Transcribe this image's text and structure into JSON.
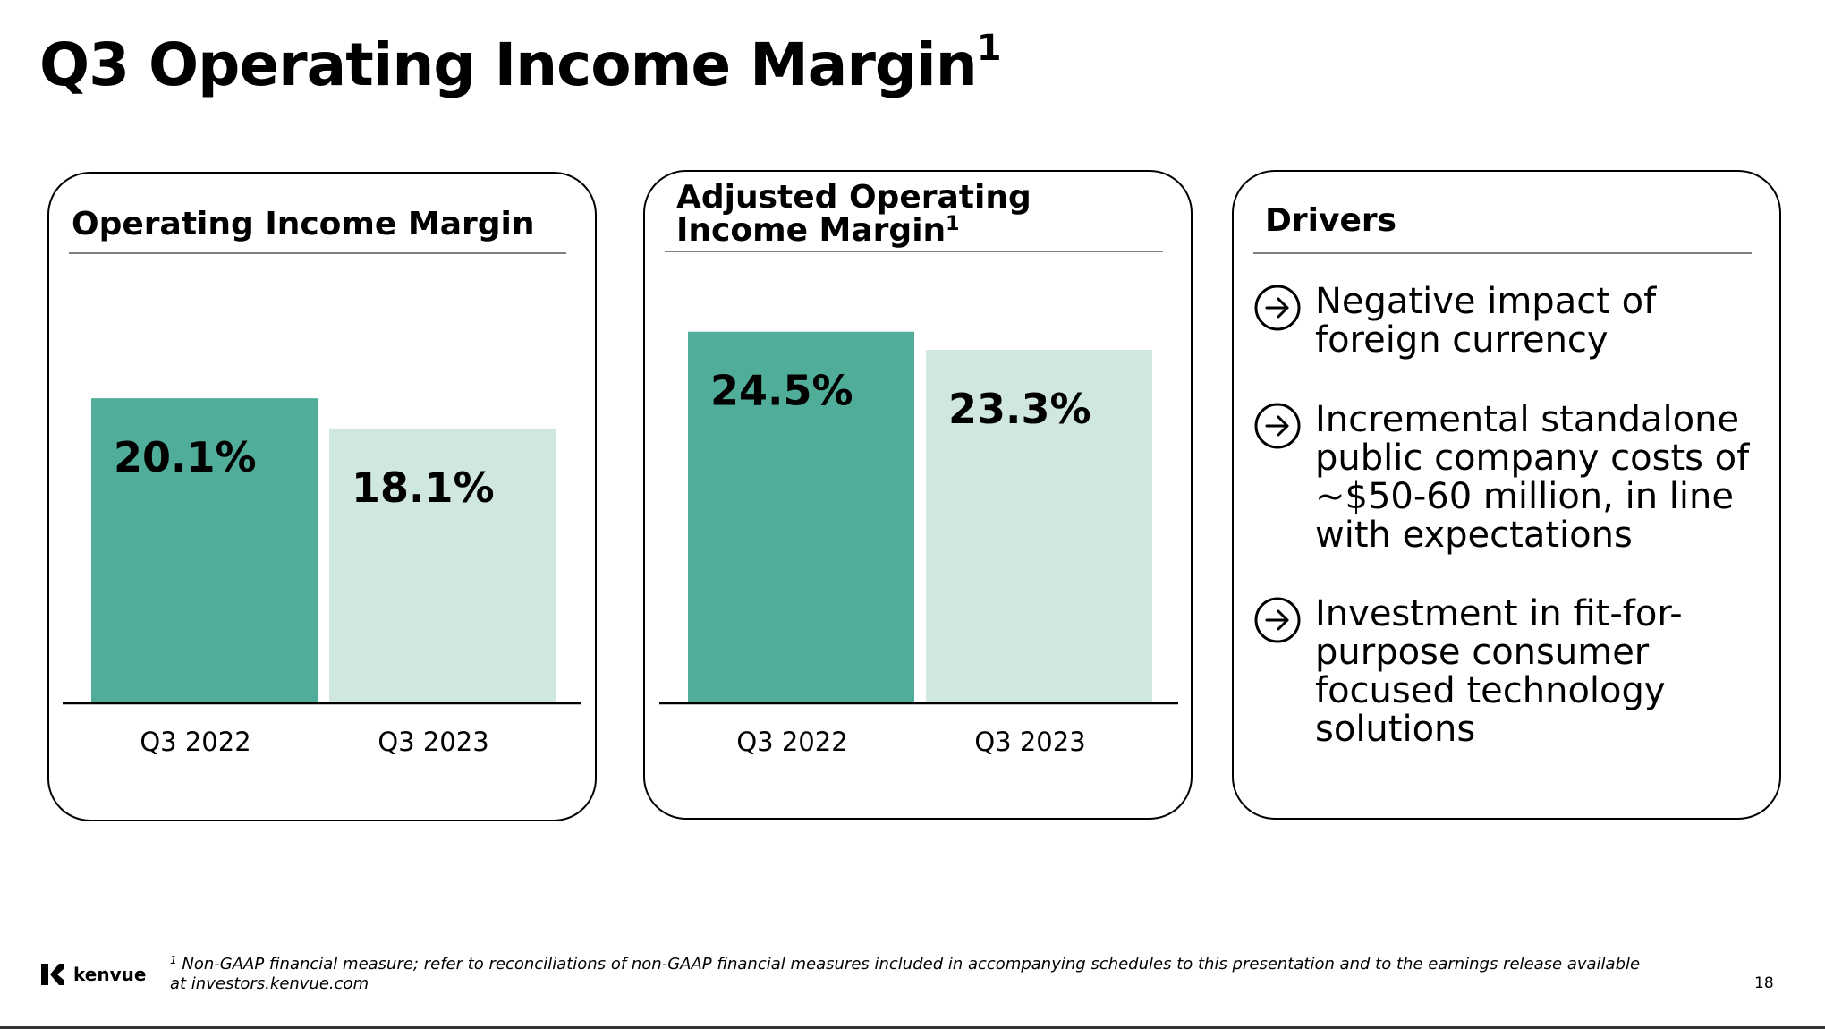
{
  "page": {
    "title": "Q3 Operating Income Margin",
    "title_sup": "1",
    "page_number": "18",
    "footnote_sup": "1",
    "footnote": "Non-GAAP financial measure; refer to reconciliations of non-GAAP financial measures included in accompanying schedules to this presentation and to the earnings release available at investors.kenvue.com",
    "logo_text": "kenvue"
  },
  "panels": {
    "operating": {
      "title": "Operating Income Margin"
    },
    "adjusted": {
      "title": "Adjusted Operating Income Margin",
      "title_sup": "1"
    },
    "drivers": {
      "title": "Drivers",
      "items": [
        {
          "text": "Negative impact of foreign currency",
          "icon": "arrow-circle-right-icon"
        },
        {
          "text": "Incremental standalone public company costs of ~$50-60 million, in line with expectations",
          "icon": "arrow-circle-right-icon"
        },
        {
          "text": "Investment in fit-for-purpose consumer focused technology solutions",
          "icon": "arrow-circle-right-icon"
        }
      ]
    }
  },
  "colors": {
    "dark_bar": "#50AD99",
    "light_bar": "#D0E6E1",
    "text": "#000000",
    "border": "#000000"
  },
  "chart_data": [
    {
      "type": "bar",
      "title": "Operating Income Margin",
      "categories": [
        "Q3 2022",
        "Q3 2023"
      ],
      "values": [
        20.1,
        18.1
      ],
      "labels": [
        "20.1%",
        "18.1%"
      ],
      "xlabel": "",
      "ylabel": "",
      "ylim": [
        0,
        27.5
      ],
      "grid": false,
      "colors": [
        "#50AD99",
        "#D0E6E1"
      ]
    },
    {
      "type": "bar",
      "title": "Adjusted Operating Income Margin",
      "categories": [
        "Q3 2022",
        "Q3 2023"
      ],
      "values": [
        24.5,
        23.3
      ],
      "labels": [
        "24.5%",
        "23.3%"
      ],
      "xlabel": "",
      "ylabel": "",
      "ylim": [
        0,
        27.5
      ],
      "grid": false,
      "colors": [
        "#50AD99",
        "#D0E6E1"
      ]
    }
  ]
}
